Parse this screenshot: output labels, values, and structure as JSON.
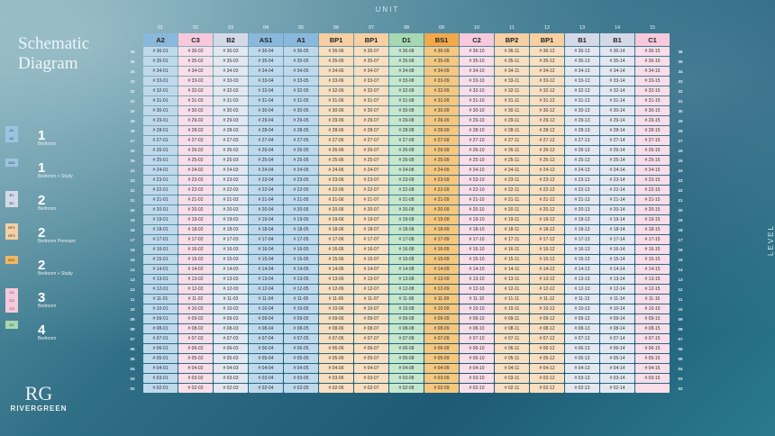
{
  "header": {
    "unit_label": "UNIT",
    "level_label": "LEVEL"
  },
  "title": {
    "line1": "Schematic",
    "line2": "Diagram"
  },
  "columns": [
    "01",
    "02",
    "03",
    "04",
    "05",
    "06",
    "07",
    "08",
    "09",
    "10",
    "11",
    "12",
    "13",
    "14",
    "15"
  ],
  "types": [
    "A2",
    "C3",
    "B2",
    "AS1",
    "A1",
    "BP1",
    "BP1",
    "D1",
    "BS1",
    "C2",
    "BP2",
    "BP1",
    "B1",
    "B1",
    "C1"
  ],
  "levels": [
    "36",
    "35",
    "34",
    "33",
    "32",
    "31",
    "30",
    "29",
    "28",
    "27",
    "26",
    "25",
    "24",
    "23",
    "22",
    "21",
    "20",
    "19",
    "18",
    "17",
    "16",
    "15",
    "14",
    "13",
    "12",
    "11",
    "10",
    "09",
    "08",
    "07",
    "06",
    "05",
    "04",
    "03",
    "02"
  ],
  "legend": [
    {
      "swatches": [
        "A1",
        "A2"
      ],
      "number": "1",
      "text": "Bedroom"
    },
    {
      "swatches": [
        "AS1"
      ],
      "number": "1",
      "text": "Bedroom + Study"
    },
    {
      "swatches": [
        "B1",
        "B2"
      ],
      "number": "2",
      "text": "Bedroom"
    },
    {
      "swatches": [
        "BP1",
        "BP2"
      ],
      "number": "2",
      "text": "Bedroom Premium"
    },
    {
      "swatches": [
        "BS1"
      ],
      "number": "2",
      "text": "Bedroom + Study"
    },
    {
      "swatches": [
        "C1",
        "C2",
        "C3"
      ],
      "number": "3",
      "text": "Bedroom"
    },
    {
      "swatches": [
        "D1"
      ],
      "number": "4",
      "text": "Bedroom"
    }
  ],
  "logo": {
    "mark": "RG",
    "name": "RIVERGREEN"
  }
}
